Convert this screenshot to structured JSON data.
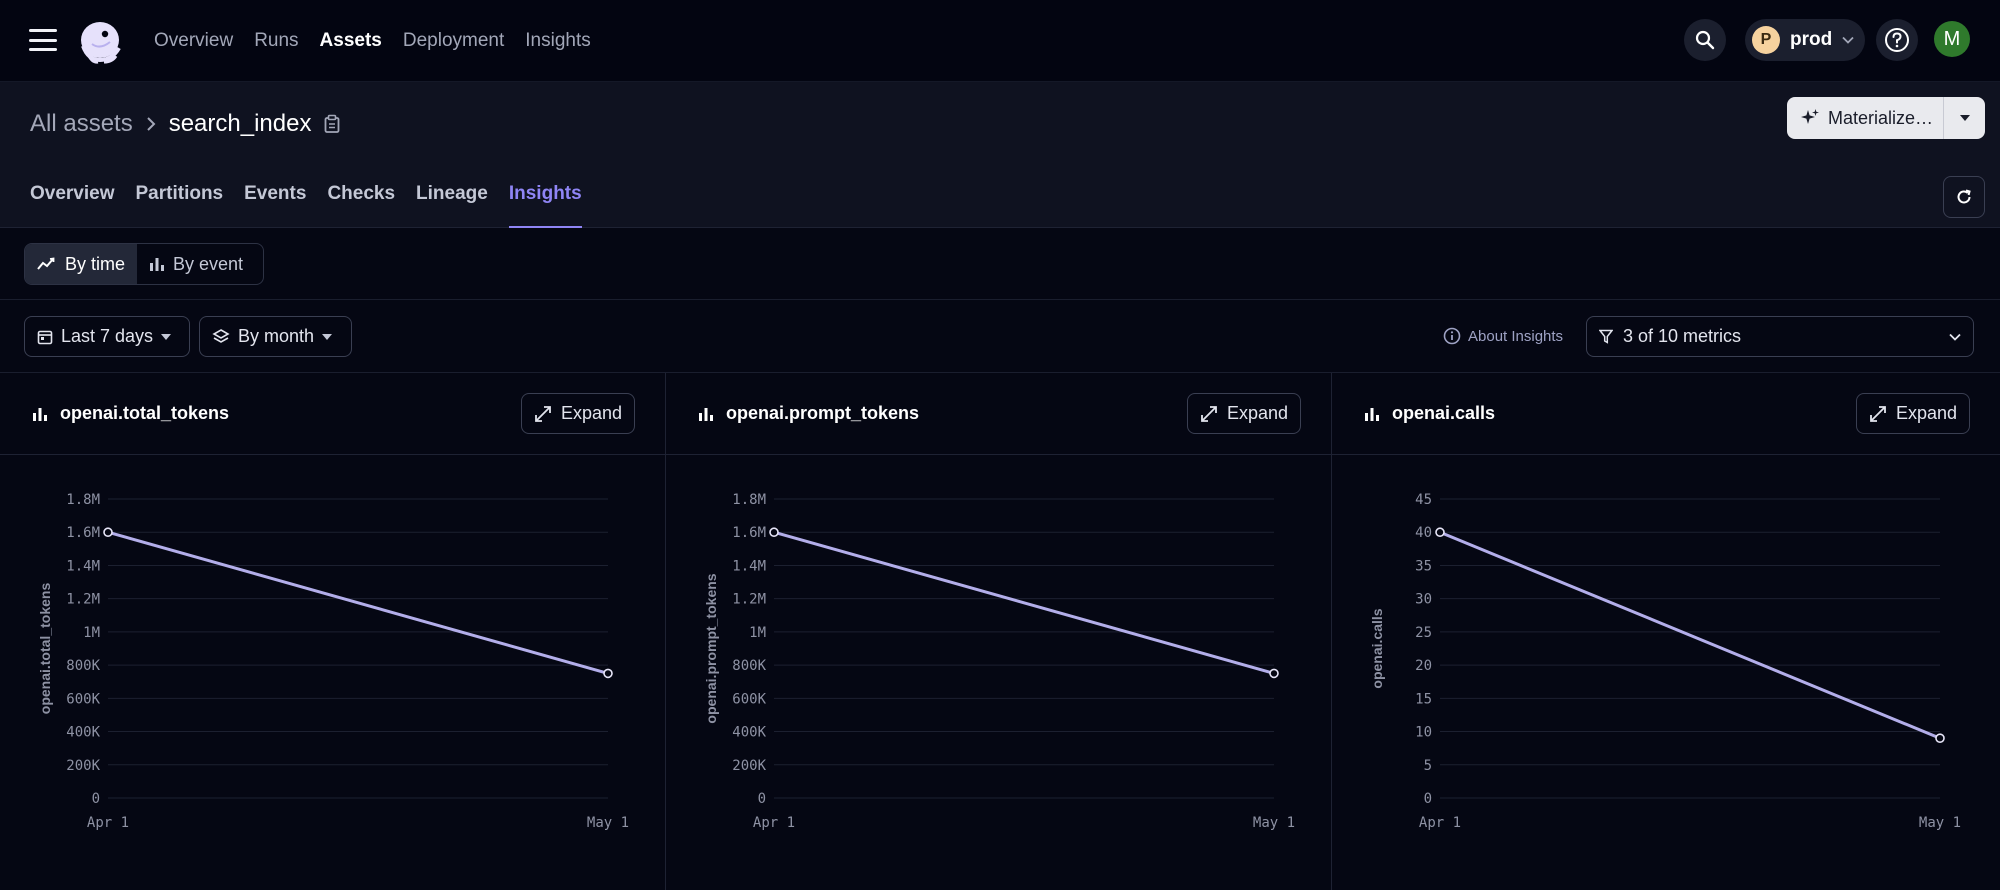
{
  "nav": {
    "links": [
      "Overview",
      "Runs",
      "Assets",
      "Deployment",
      "Insights"
    ],
    "active": "Assets",
    "deployment": {
      "initial": "P",
      "label": "prod"
    },
    "user_initial": "M"
  },
  "header": {
    "breadcrumb_root": "All assets",
    "breadcrumb_current": "search_index",
    "materialize_label": "Materialize…",
    "tabs": [
      "Overview",
      "Partitions",
      "Events",
      "Checks",
      "Lineage",
      "Insights"
    ],
    "active_tab": "Insights"
  },
  "view_toggle": {
    "by_time": "By time",
    "by_event": "By event",
    "active": "By time"
  },
  "filters": {
    "range_label": "Last 7 days",
    "grain_label": "By month",
    "about_label": "About Insights",
    "metrics_label": "3 of 10 metrics"
  },
  "expand_label": "Expand",
  "colors": {
    "accent": "#8f85f5",
    "series_line": "#b3aeea",
    "background": "#050713"
  },
  "chart_data": [
    {
      "type": "line",
      "title": "openai.total_tokens",
      "ylabel": "openai.total_tokens",
      "x": [
        "Apr 1",
        "May 1"
      ],
      "yticks": [
        0,
        200000,
        400000,
        600000,
        800000,
        1000000,
        1200000,
        1400000,
        1600000,
        1800000
      ],
      "ytick_labels": [
        "0",
        "200K",
        "400K",
        "600K",
        "800K",
        "1M",
        "1.2M",
        "1.4M",
        "1.6M",
        "1.8M"
      ],
      "ylim": [
        0,
        1800000
      ],
      "values": [
        1600000,
        750000
      ],
      "grid": true
    },
    {
      "type": "line",
      "title": "openai.prompt_tokens",
      "ylabel": "openai.prompt_tokens",
      "x": [
        "Apr 1",
        "May 1"
      ],
      "yticks": [
        0,
        200000,
        400000,
        600000,
        800000,
        1000000,
        1200000,
        1400000,
        1600000,
        1800000
      ],
      "ytick_labels": [
        "0",
        "200K",
        "400K",
        "600K",
        "800K",
        "1M",
        "1.2M",
        "1.4M",
        "1.6M",
        "1.8M"
      ],
      "ylim": [
        0,
        1800000
      ],
      "values": [
        1600000,
        750000
      ],
      "grid": true
    },
    {
      "type": "line",
      "title": "openai.calls",
      "ylabel": "openai.calls",
      "x": [
        "Apr 1",
        "May 1"
      ],
      "yticks": [
        0,
        5,
        10,
        15,
        20,
        25,
        30,
        35,
        40,
        45
      ],
      "ytick_labels": [
        "0",
        "5",
        "10",
        "15",
        "20",
        "25",
        "30",
        "35",
        "40",
        "45"
      ],
      "ylim": [
        0,
        45
      ],
      "values": [
        40,
        9
      ],
      "grid": true
    }
  ]
}
